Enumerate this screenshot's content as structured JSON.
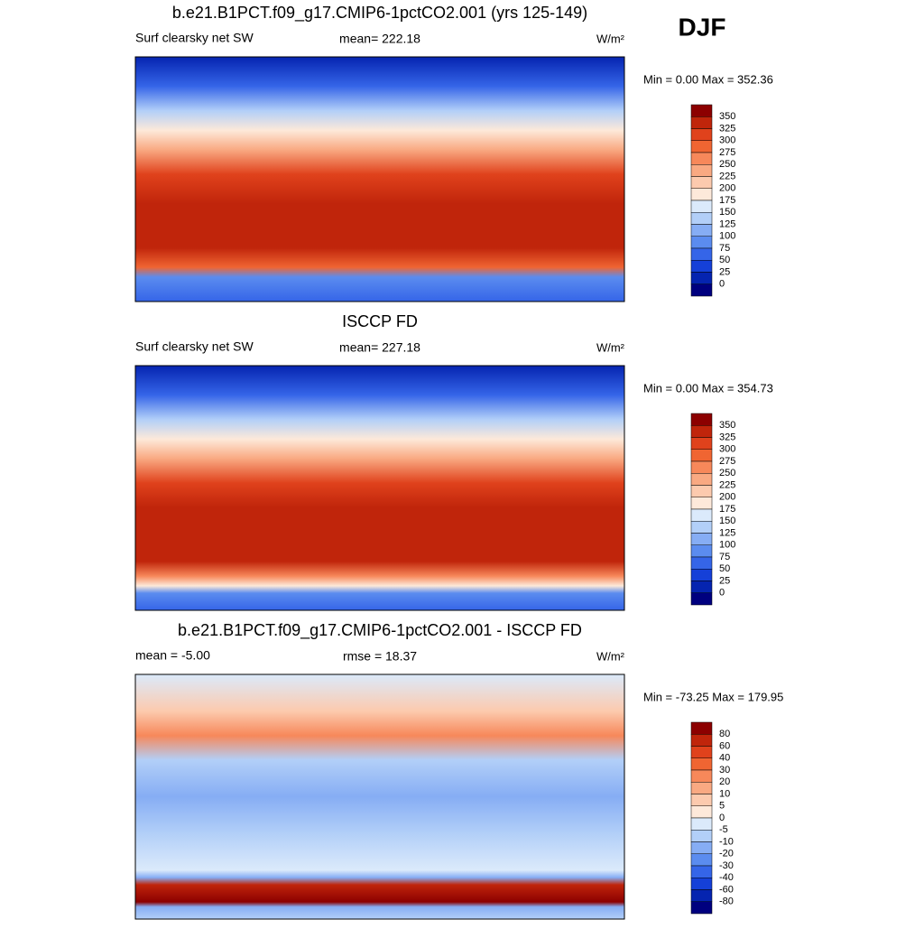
{
  "season": "DJF",
  "palette": [
    "#8c0000",
    "#c0250b",
    "#e0421c",
    "#f06532",
    "#f7885a",
    "#f9a982",
    "#fccaae",
    "#fde9da",
    "#dbeafb",
    "#b2cff8",
    "#86adf4",
    "#5b8cef",
    "#3565e8",
    "#1540d8",
    "#0524b0",
    "#00007f"
  ],
  "panels": [
    {
      "title": "b.e21.B1PCT.f09_g17.CMIP6-1pctCO2.001 (yrs 125-149)",
      "left": "Surf clearsky net SW",
      "center": "mean= 222.18",
      "units": "W/m²",
      "minmax": "Min =   0.00 Max = 352.36",
      "levels": [
        "350",
        "325",
        "300",
        "275",
        "250",
        "225",
        "200",
        "175",
        "150",
        "125",
        "100",
        "75",
        "50",
        "25",
        "0"
      ]
    },
    {
      "title": "ISCCP FD",
      "left": "Surf clearsky net SW",
      "center": "mean= 227.18",
      "units": "W/m²",
      "minmax": "Min =   0.00 Max = 354.73",
      "levels": [
        "350",
        "325",
        "300",
        "275",
        "250",
        "225",
        "200",
        "175",
        "150",
        "125",
        "100",
        "75",
        "50",
        "25",
        "0"
      ]
    },
    {
      "title": "b.e21.B1PCT.f09_g17.CMIP6-1pctCO2.001 - ISCCP FD",
      "left": "mean =  -5.00",
      "center": "rmse =  18.37",
      "units": "W/m²",
      "minmax": "Min = -73.25 Max = 179.95",
      "levels": [
        "80",
        "60",
        "40",
        "30",
        "20",
        "10",
        "5",
        "0",
        "-5",
        "-10",
        "-20",
        "-30",
        "-40",
        "-60",
        "-80"
      ]
    }
  ]
}
